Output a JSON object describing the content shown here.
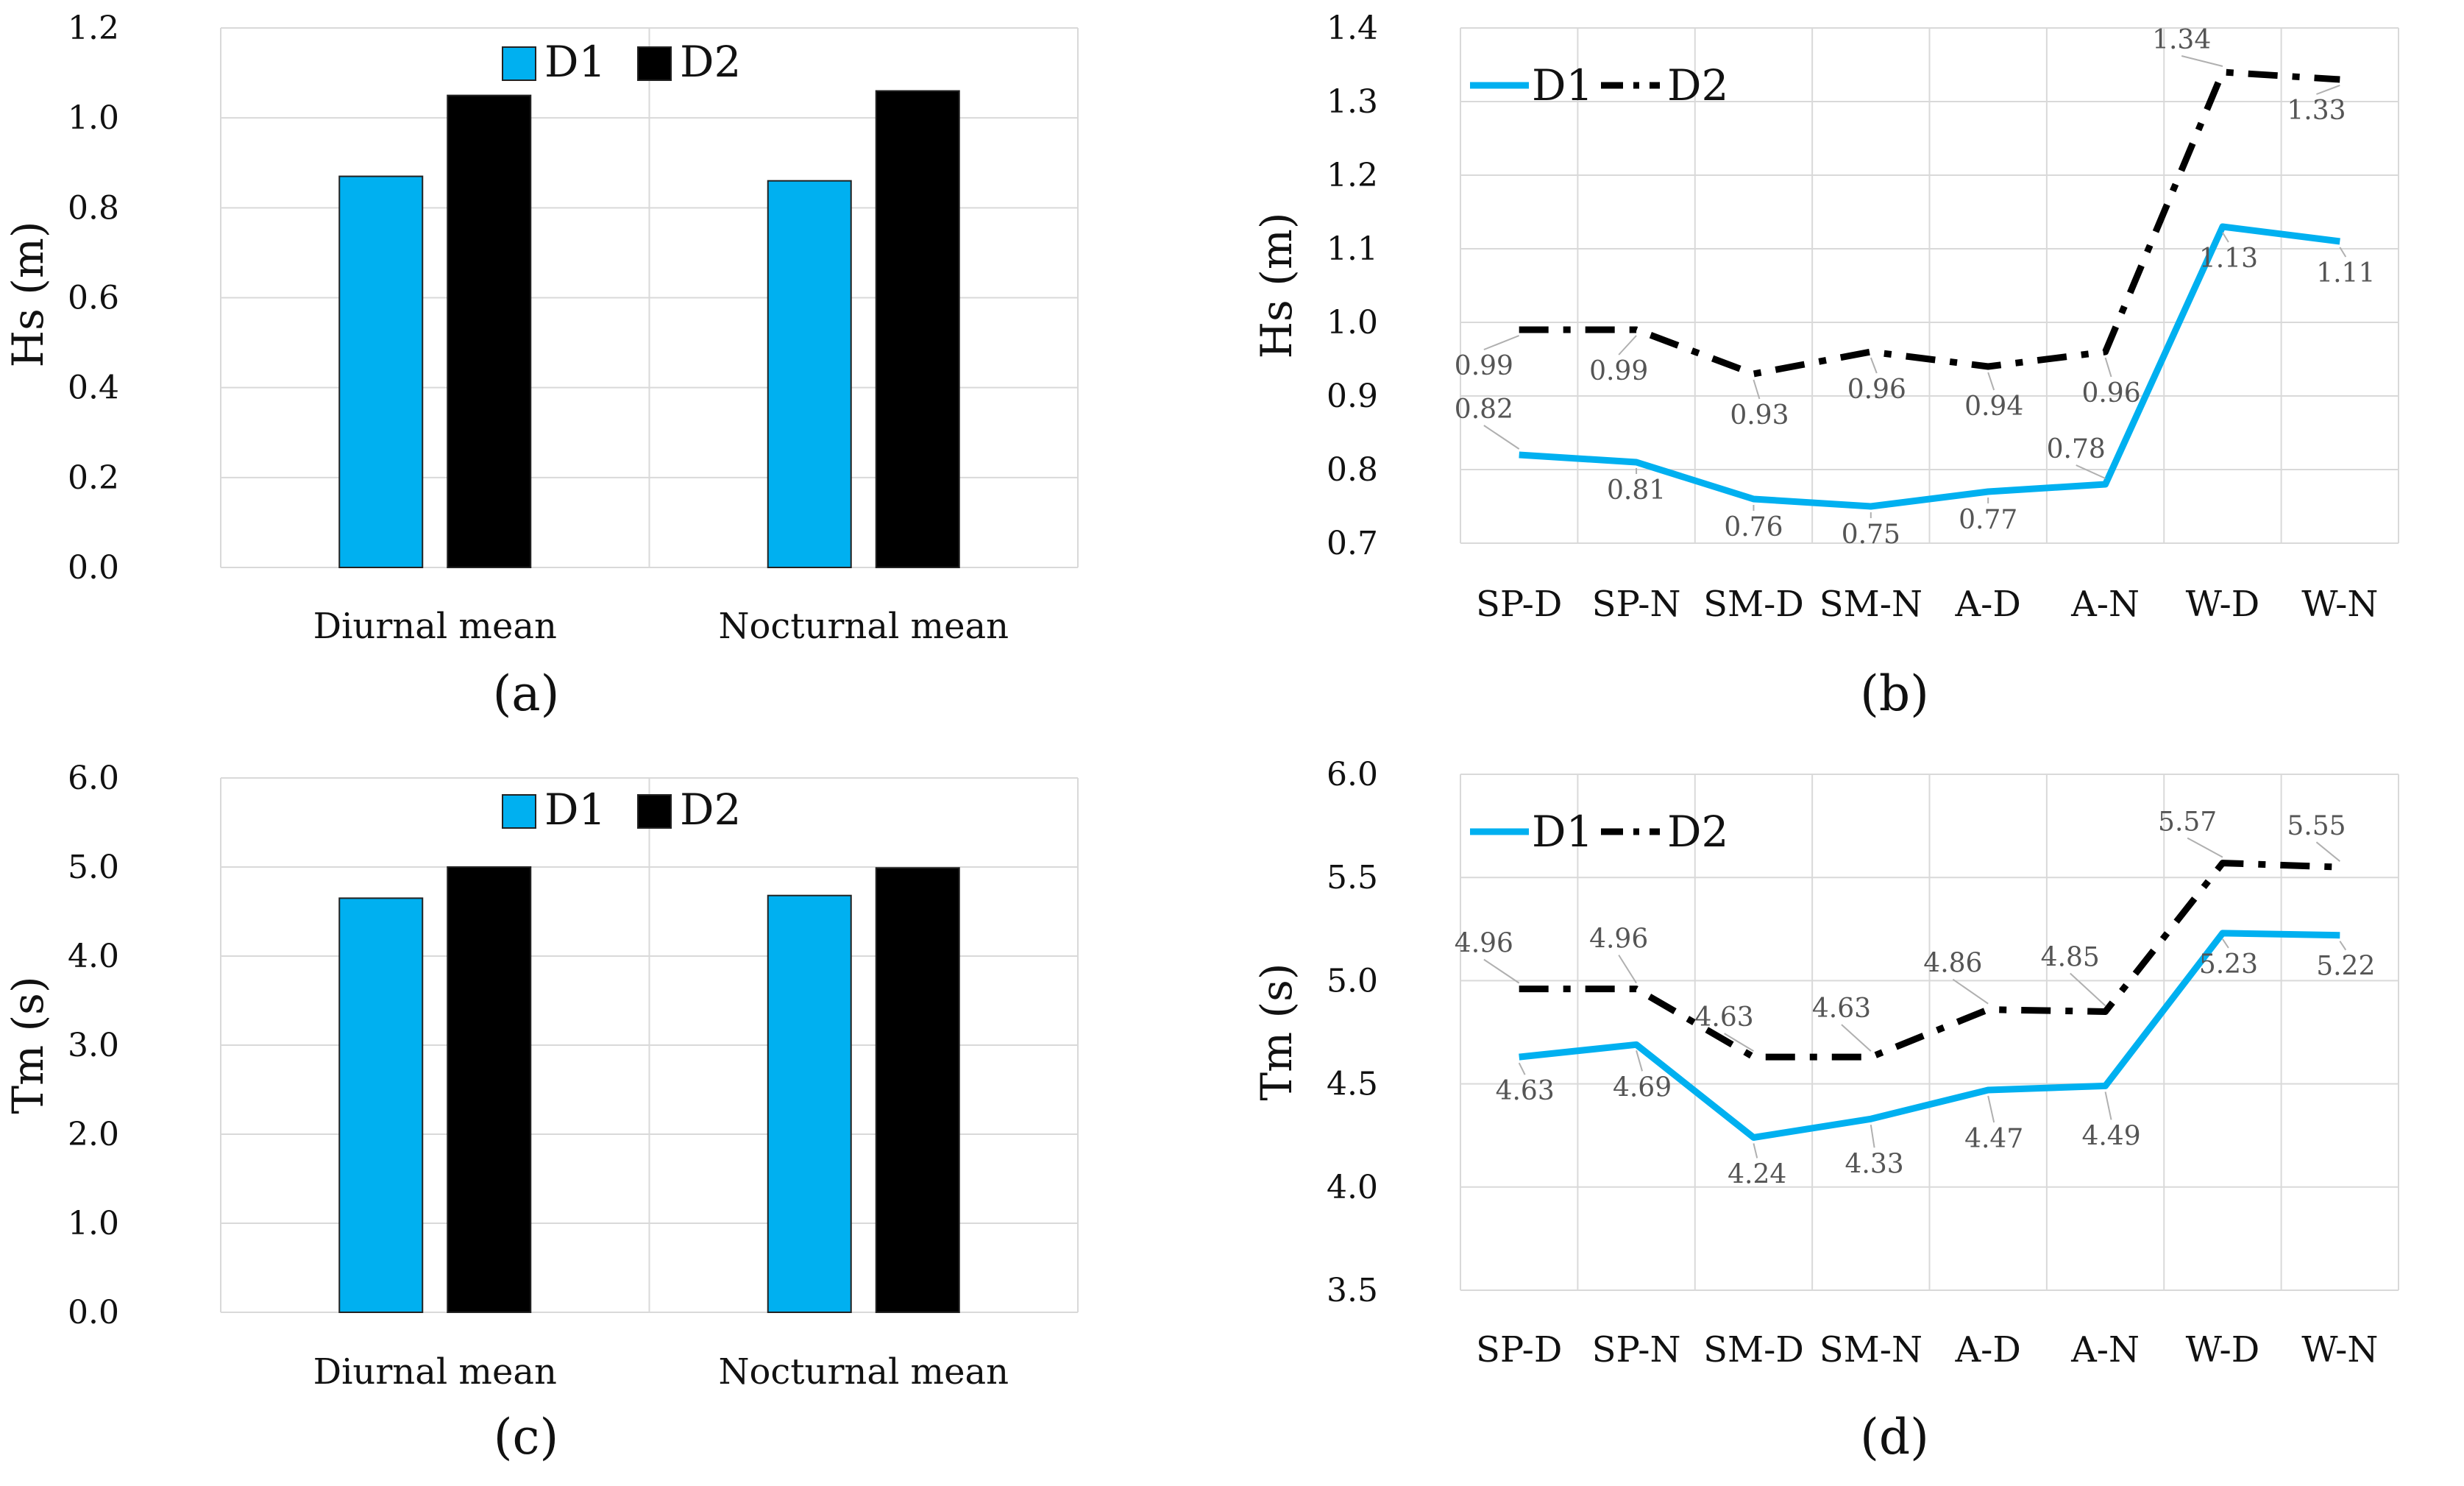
{
  "chart_data": [
    {
      "type": "bar",
      "panel_label": "(a)",
      "categories": [
        "Diurnal mean",
        "Nocturnal mean"
      ],
      "series": [
        {
          "name": "D1",
          "values": [
            0.87,
            0.86
          ],
          "color": "#00b0f0"
        },
        {
          "name": "D2",
          "values": [
            1.05,
            1.06
          ],
          "color": "#000000"
        }
      ],
      "ylabel": "Hs (m)",
      "ylim": [
        0,
        1.2
      ],
      "yticks": [
        "0.0",
        "0.2",
        "0.4",
        "0.6",
        "0.8",
        "1.0",
        "1.2"
      ],
      "legend": "top-center",
      "grid": true
    },
    {
      "type": "line",
      "panel_label": "(b)",
      "categories": [
        "SP-D",
        "SP-N",
        "SM-D",
        "SM-N",
        "A-D",
        "A-N",
        "W-D",
        "W-N"
      ],
      "series": [
        {
          "name": "D1",
          "values": [
            0.82,
            0.81,
            0.76,
            0.75,
            0.77,
            0.78,
            1.13,
            1.11
          ],
          "color": "#00b0f0",
          "style": "solid"
        },
        {
          "name": "D2",
          "values": [
            0.99,
            0.99,
            0.93,
            0.96,
            0.94,
            0.96,
            1.34,
            1.33
          ],
          "color": "#000000",
          "style": "dash-dot"
        }
      ],
      "ylabel": "Hs (m)",
      "ylim": [
        0.7,
        1.4
      ],
      "yticks": [
        "0.7",
        "0.8",
        "0.9",
        "1.0",
        "1.1",
        "1.2",
        "1.3",
        "1.4"
      ],
      "legend": "top-left",
      "grid": true
    },
    {
      "type": "bar",
      "panel_label": "(c)",
      "categories": [
        "Diurnal mean",
        "Nocturnal mean"
      ],
      "series": [
        {
          "name": "D1",
          "values": [
            4.65,
            4.68
          ],
          "color": "#00b0f0"
        },
        {
          "name": "D2",
          "values": [
            5.0,
            4.99
          ],
          "color": "#000000"
        }
      ],
      "ylabel": "Tm (s)",
      "ylim": [
        0,
        6
      ],
      "yticks": [
        "0.0",
        "1.0",
        "2.0",
        "3.0",
        "4.0",
        "5.0",
        "6.0"
      ],
      "legend": "top-center",
      "grid": true
    },
    {
      "type": "line",
      "panel_label": "(d)",
      "categories": [
        "SP-D",
        "SP-N",
        "SM-D",
        "SM-N",
        "A-D",
        "A-N",
        "W-D",
        "W-N"
      ],
      "series": [
        {
          "name": "D1",
          "values": [
            4.63,
            4.69,
            4.24,
            4.33,
            4.47,
            4.49,
            5.23,
            5.22
          ],
          "color": "#00b0f0",
          "style": "solid"
        },
        {
          "name": "D2",
          "values": [
            4.96,
            4.96,
            4.63,
            4.63,
            4.86,
            4.85,
            5.57,
            5.55
          ],
          "color": "#000000",
          "style": "dash-dot"
        }
      ],
      "ylabel": "Tm (s)",
      "ylim": [
        3.5,
        6.0
      ],
      "yticks": [
        "3.5",
        "4.0",
        "4.5",
        "5.0",
        "5.5",
        "6.0"
      ],
      "legend": "top-left",
      "grid": true
    }
  ]
}
